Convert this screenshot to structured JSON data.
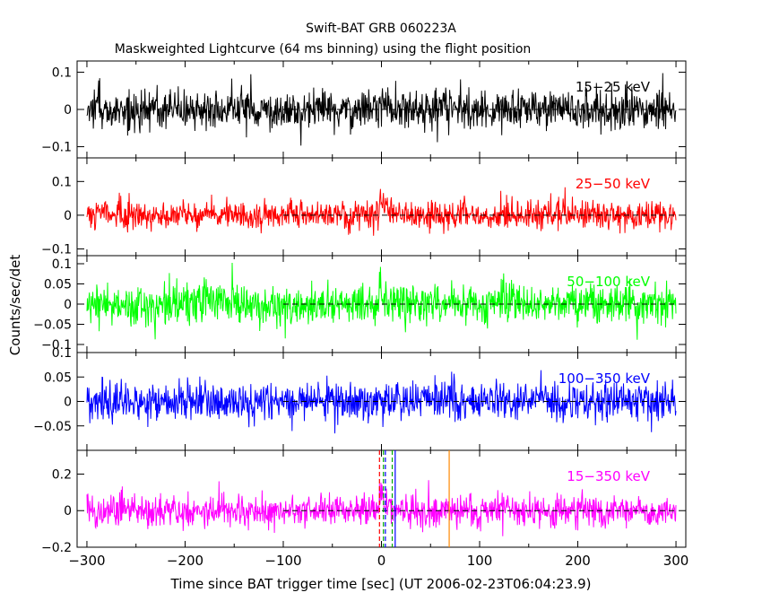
{
  "title": "Swift-BAT GRB 060223A",
  "subtitle": "Maskweighted Lightcurve (64 ms binning) using the flight position",
  "xlabel": "Time since BAT trigger time [sec] (UT 2006-02-23T06:04:23.9)",
  "ylabel": "Counts/sec/det",
  "chart_data": {
    "type": "line",
    "title": "Swift-BAT GRB 060223A",
    "subtitle": "Maskweighted Lightcurve (64 ms binning) using the flight position",
    "xlabel": "Time since BAT trigger time [sec] (UT 2006-02-23T06:04:23.9)",
    "ylabel": "Counts/sec/det",
    "xlim": [
      -310,
      310
    ],
    "x_ticks": [
      -300,
      -200,
      -100,
      0,
      100,
      200,
      300
    ],
    "x_tick_labels": [
      "−300",
      "−200",
      "−100",
      "0",
      "100",
      "200",
      "300"
    ],
    "data_x_range": [
      -300,
      300
    ],
    "zero_line_range": [
      -100,
      300
    ],
    "panels": [
      {
        "name": "15−25 keV",
        "color": "#000000",
        "ylim": [
          -0.13,
          0.13
        ],
        "y_ticks": [
          0.1,
          0,
          -0.1
        ],
        "y_tick_labels": [
          "0.1",
          "0",
          "−0.1"
        ],
        "noise_sigma": 0.028,
        "burst": [
          {
            "t": [
              -2,
              12
            ],
            "peak": 0.04
          }
        ]
      },
      {
        "name": "25−50 keV",
        "color": "#ff0000",
        "ylim": [
          -0.12,
          0.17
        ],
        "y_ticks": [
          0.1,
          0,
          -0.1
        ],
        "y_tick_labels": [
          "0.1",
          "0",
          "−0.1"
        ],
        "noise_sigma": 0.022,
        "burst": [
          {
            "t": [
              -2,
              12
            ],
            "peak": 0.09
          }
        ]
      },
      {
        "name": "50−100 keV",
        "color": "#00ff00",
        "ylim": [
          -0.12,
          0.12
        ],
        "y_ticks": [
          0.1,
          0.05,
          0,
          -0.05,
          -0.1
        ],
        "y_tick_labels": [
          "0.1",
          "0.05",
          "0",
          "−0.05",
          "−0.1"
        ],
        "noise_sigma": 0.025,
        "burst": [
          {
            "t": [
              -2,
              10
            ],
            "peak": 0.05
          }
        ]
      },
      {
        "name": "100−350 keV",
        "color": "#0000ff",
        "ylim": [
          -0.1,
          0.1
        ],
        "y_ticks": [
          0.1,
          0.05,
          0,
          -0.05
        ],
        "y_tick_labels": [
          "0.1",
          "0.05",
          "0",
          "−0.05"
        ],
        "noise_sigma": 0.02,
        "burst": []
      },
      {
        "name": "15−350 keV",
        "color": "#ff00ff",
        "ylim": [
          -0.2,
          0.33
        ],
        "y_ticks": [
          0.2,
          0,
          -0.2
        ],
        "y_tick_labels": [
          "0.2",
          "0",
          "−0.2"
        ],
        "noise_sigma": 0.045,
        "burst": [
          {
            "t": [
              -2,
              14
            ],
            "peak": 0.18
          }
        ]
      }
    ],
    "markers": [
      {
        "x": -2,
        "color": "#ff0000",
        "style": "dashed"
      },
      {
        "x": 2,
        "color": "#00aa00",
        "style": "dashed"
      },
      {
        "x": 4,
        "color": "#0000ff",
        "style": "dashed"
      },
      {
        "x": 11,
        "color": "#00aa00",
        "style": "dashed"
      },
      {
        "x": 14,
        "color": "#0000ff",
        "style": "solid"
      },
      {
        "x": 69,
        "color": "#ff8800",
        "style": "solid"
      }
    ],
    "grid": false
  }
}
